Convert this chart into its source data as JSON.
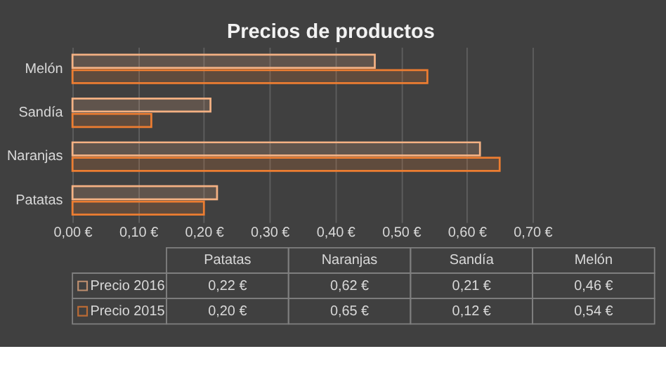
{
  "chart_data": {
    "type": "bar",
    "orientation": "horizontal",
    "title": "Precios de productos",
    "categories": [
      "Melón",
      "Sandía",
      "Naranjas",
      "Patatas"
    ],
    "series": [
      {
        "name": "Precio 2016",
        "color": "#f4b183",
        "values": [
          0.46,
          0.21,
          0.62,
          0.22
        ]
      },
      {
        "name": "Precio 2015",
        "color": "#ed7d31",
        "values": [
          0.54,
          0.12,
          0.65,
          0.2
        ]
      }
    ],
    "annotations": [
      "0,22 €",
      "0,62 €",
      "0,21 €",
      "0,46 €",
      "0,20 €",
      "0,65 €",
      "0,12 €",
      "0,54 €"
    ],
    "xlim": [
      0,
      0.7
    ],
    "xticks": [
      {
        "value": 0,
        "label": "0,00 €"
      },
      {
        "value": 0.1,
        "label": "0,10 €"
      },
      {
        "value": 0.2,
        "label": "0,20 €"
      },
      {
        "value": 0.3,
        "label": "0,30 €"
      },
      {
        "value": 0.4,
        "label": "0,40 €"
      },
      {
        "value": 0.5,
        "label": "0,50 €"
      },
      {
        "value": 0.6,
        "label": "0,60 €"
      },
      {
        "value": 0.7,
        "label": "0,70 €"
      }
    ],
    "grid": "x",
    "legend": "bottom"
  }
}
